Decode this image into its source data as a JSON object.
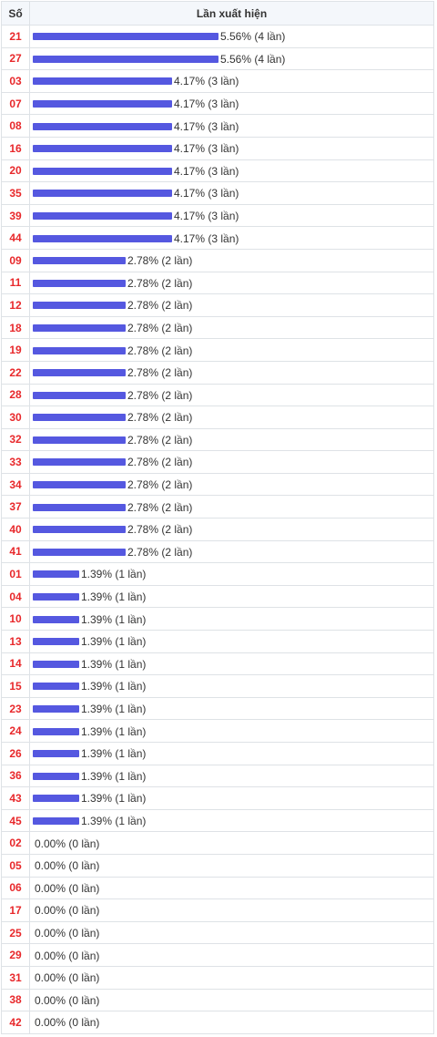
{
  "header": {
    "col_number": "Số",
    "col_frequency": "Lần xuất hiện"
  },
  "colors": {
    "number_text": "#e8282b",
    "bar": "#5558e0",
    "header_bg": "#f4f7fb"
  },
  "chart_data": {
    "type": "bar",
    "orientation": "horizontal",
    "columns": [
      "Số",
      "Lần xuất hiện"
    ],
    "rows": [
      {
        "number": "21",
        "count": 4,
        "percent": 5.56,
        "label": "5.56% (4 lần)"
      },
      {
        "number": "27",
        "count": 4,
        "percent": 5.56,
        "label": "5.56% (4 lần)"
      },
      {
        "number": "03",
        "count": 3,
        "percent": 4.17,
        "label": "4.17% (3 lần)"
      },
      {
        "number": "07",
        "count": 3,
        "percent": 4.17,
        "label": "4.17% (3 lần)"
      },
      {
        "number": "08",
        "count": 3,
        "percent": 4.17,
        "label": "4.17% (3 lần)"
      },
      {
        "number": "16",
        "count": 3,
        "percent": 4.17,
        "label": "4.17% (3 lần)"
      },
      {
        "number": "20",
        "count": 3,
        "percent": 4.17,
        "label": "4.17% (3 lần)"
      },
      {
        "number": "35",
        "count": 3,
        "percent": 4.17,
        "label": "4.17% (3 lần)"
      },
      {
        "number": "39",
        "count": 3,
        "percent": 4.17,
        "label": "4.17% (3 lần)"
      },
      {
        "number": "44",
        "count": 3,
        "percent": 4.17,
        "label": "4.17% (3 lần)"
      },
      {
        "number": "09",
        "count": 2,
        "percent": 2.78,
        "label": "2.78% (2 lần)"
      },
      {
        "number": "11",
        "count": 2,
        "percent": 2.78,
        "label": "2.78% (2 lần)"
      },
      {
        "number": "12",
        "count": 2,
        "percent": 2.78,
        "label": "2.78% (2 lần)"
      },
      {
        "number": "18",
        "count": 2,
        "percent": 2.78,
        "label": "2.78% (2 lần)"
      },
      {
        "number": "19",
        "count": 2,
        "percent": 2.78,
        "label": "2.78% (2 lần)"
      },
      {
        "number": "22",
        "count": 2,
        "percent": 2.78,
        "label": "2.78% (2 lần)"
      },
      {
        "number": "28",
        "count": 2,
        "percent": 2.78,
        "label": "2.78% (2 lần)"
      },
      {
        "number": "30",
        "count": 2,
        "percent": 2.78,
        "label": "2.78% (2 lần)"
      },
      {
        "number": "32",
        "count": 2,
        "percent": 2.78,
        "label": "2.78% (2 lần)"
      },
      {
        "number": "33",
        "count": 2,
        "percent": 2.78,
        "label": "2.78% (2 lần)"
      },
      {
        "number": "34",
        "count": 2,
        "percent": 2.78,
        "label": "2.78% (2 lần)"
      },
      {
        "number": "37",
        "count": 2,
        "percent": 2.78,
        "label": "2.78% (2 lần)"
      },
      {
        "number": "40",
        "count": 2,
        "percent": 2.78,
        "label": "2.78% (2 lần)"
      },
      {
        "number": "41",
        "count": 2,
        "percent": 2.78,
        "label": "2.78% (2 lần)"
      },
      {
        "number": "01",
        "count": 1,
        "percent": 1.39,
        "label": "1.39% (1 lần)"
      },
      {
        "number": "04",
        "count": 1,
        "percent": 1.39,
        "label": "1.39% (1 lần)"
      },
      {
        "number": "10",
        "count": 1,
        "percent": 1.39,
        "label": "1.39% (1 lần)"
      },
      {
        "number": "13",
        "count": 1,
        "percent": 1.39,
        "label": "1.39% (1 lần)"
      },
      {
        "number": "14",
        "count": 1,
        "percent": 1.39,
        "label": "1.39% (1 lần)"
      },
      {
        "number": "15",
        "count": 1,
        "percent": 1.39,
        "label": "1.39% (1 lần)"
      },
      {
        "number": "23",
        "count": 1,
        "percent": 1.39,
        "label": "1.39% (1 lần)"
      },
      {
        "number": "24",
        "count": 1,
        "percent": 1.39,
        "label": "1.39% (1 lần)"
      },
      {
        "number": "26",
        "count": 1,
        "percent": 1.39,
        "label": "1.39% (1 lần)"
      },
      {
        "number": "36",
        "count": 1,
        "percent": 1.39,
        "label": "1.39% (1 lần)"
      },
      {
        "number": "43",
        "count": 1,
        "percent": 1.39,
        "label": "1.39% (1 lần)"
      },
      {
        "number": "45",
        "count": 1,
        "percent": 1.39,
        "label": "1.39% (1 lần)"
      },
      {
        "number": "02",
        "count": 0,
        "percent": 0.0,
        "label": "0.00% (0 lần)"
      },
      {
        "number": "05",
        "count": 0,
        "percent": 0.0,
        "label": "0.00% (0 lần)"
      },
      {
        "number": "06",
        "count": 0,
        "percent": 0.0,
        "label": "0.00% (0 lần)"
      },
      {
        "number": "17",
        "count": 0,
        "percent": 0.0,
        "label": "0.00% (0 lần)"
      },
      {
        "number": "25",
        "count": 0,
        "percent": 0.0,
        "label": "0.00% (0 lần)"
      },
      {
        "number": "29",
        "count": 0,
        "percent": 0.0,
        "label": "0.00% (0 lần)"
      },
      {
        "number": "31",
        "count": 0,
        "percent": 0.0,
        "label": "0.00% (0 lần)"
      },
      {
        "number": "38",
        "count": 0,
        "percent": 0.0,
        "label": "0.00% (0 lần)"
      },
      {
        "number": "42",
        "count": 0,
        "percent": 0.0,
        "label": "0.00% (0 lần)"
      }
    ]
  }
}
